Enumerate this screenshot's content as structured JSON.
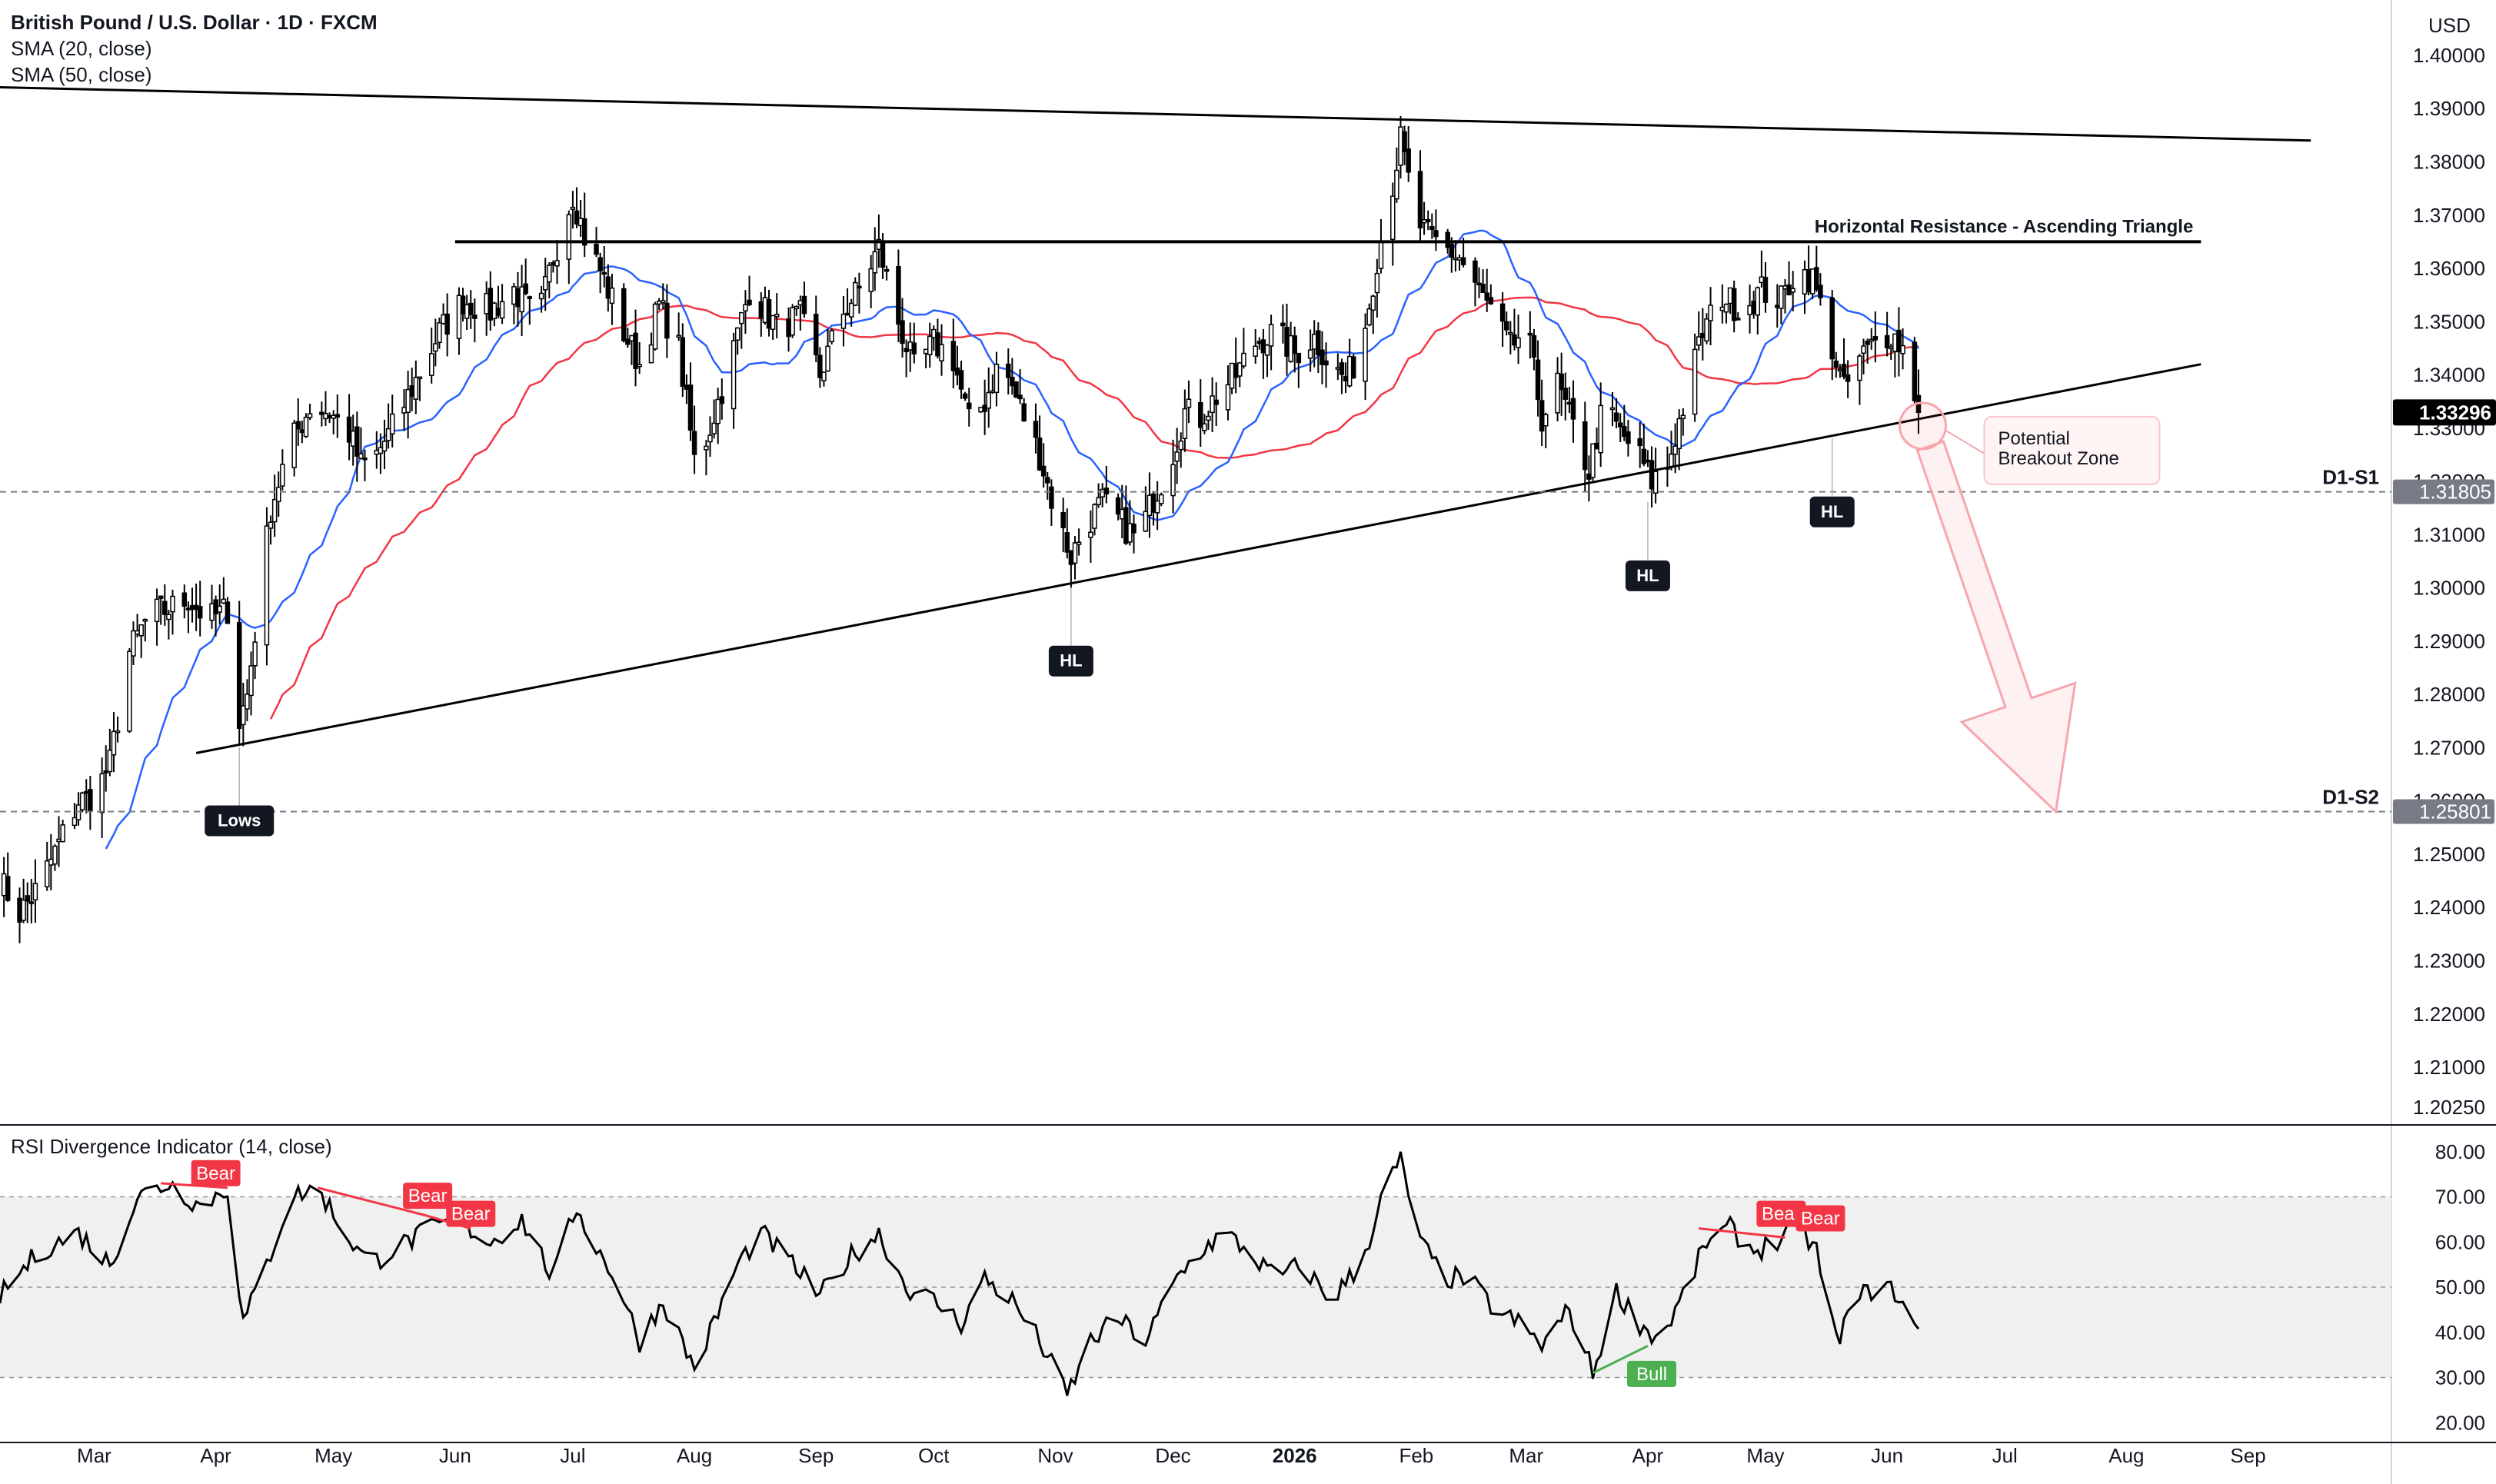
{
  "header": {
    "title": "British Pound / U.S. Dollar · 1D · FXCM",
    "indicators": [
      "SMA (20, close)",
      "SMA (50, close)"
    ]
  },
  "colors": {
    "sma20": "#2962ff",
    "sma50": "#f23645",
    "candle": "#000000",
    "bear_label": "#f23645",
    "bull_label": "#4caf50",
    "breakout_arrow": "#f7a6ad",
    "rsi_band": "#f0f0f0"
  },
  "chart_data": [
    {
      "type": "candlestick",
      "currency_label": "USD",
      "ylim": [
        1.2025,
        1.4075
      ],
      "y_ticks": [
        "1.40000",
        "1.39000",
        "1.38000",
        "1.37000",
        "1.36000",
        "1.35000",
        "1.34000",
        "1.33000",
        "1.32000",
        "1.31000",
        "1.30000",
        "1.29000",
        "1.28000",
        "1.27000",
        "1.26000",
        "1.25000",
        "1.24000",
        "1.23000",
        "1.22000",
        "1.21000",
        "1.20250"
      ],
      "x_labels": [
        {
          "label": "Mar",
          "date": "2025-03-01"
        },
        {
          "label": "Apr",
          "date": "2025-04-01"
        },
        {
          "label": "May",
          "date": "2025-05-01"
        },
        {
          "label": "Jun",
          "date": "2025-06-01"
        },
        {
          "label": "Jul",
          "date": "2025-07-01"
        },
        {
          "label": "Aug",
          "date": "2025-08-01"
        },
        {
          "label": "Sep",
          "date": "2025-09-01"
        },
        {
          "label": "Oct",
          "date": "2025-10-01"
        },
        {
          "label": "Nov",
          "date": "2025-11-01"
        },
        {
          "label": "Dec",
          "date": "2025-12-01"
        },
        {
          "label": "2026",
          "date": "2026-01-01",
          "bold": true
        },
        {
          "label": "Feb",
          "date": "2026-02-01"
        },
        {
          "label": "Mar",
          "date": "2026-03-01"
        },
        {
          "label": "Apr",
          "date": "2026-04-01"
        },
        {
          "label": "May",
          "date": "2026-05-01"
        },
        {
          "label": "Jun",
          "date": "2026-06-01"
        },
        {
          "label": "Jul",
          "date": "2026-07-01"
        },
        {
          "label": "Aug",
          "date": "2026-08-01"
        },
        {
          "label": "Sep",
          "date": "2026-09-01"
        }
      ],
      "x_range": [
        "2025-02-05",
        "2026-09-25"
      ],
      "last_date": "2026-06-09",
      "close_anchors": [
        [
          "2025-02-05",
          1.245
        ],
        [
          "2025-02-10",
          1.239
        ],
        [
          "2025-02-15",
          1.244
        ],
        [
          "2025-02-20",
          1.252
        ],
        [
          "2025-02-25",
          1.26
        ],
        [
          "2025-03-01",
          1.261
        ],
        [
          "2025-03-05",
          1.267
        ],
        [
          "2025-03-10",
          1.288
        ],
        [
          "2025-03-15",
          1.295
        ],
        [
          "2025-03-20",
          1.296
        ],
        [
          "2025-03-25",
          1.298
        ],
        [
          "2025-03-30",
          1.294
        ],
        [
          "2025-04-04",
          1.296
        ],
        [
          "2025-04-07",
          1.275
        ],
        [
          "2025-04-09",
          1.28
        ],
        [
          "2025-04-15",
          1.315
        ],
        [
          "2025-04-20",
          1.327
        ],
        [
          "2025-04-25",
          1.334
        ],
        [
          "2025-04-30",
          1.333
        ],
        [
          "2025-05-05",
          1.329
        ],
        [
          "2025-05-08",
          1.323
        ],
        [
          "2025-05-12",
          1.325
        ],
        [
          "2025-05-16",
          1.33
        ],
        [
          "2025-05-22",
          1.339
        ],
        [
          "2025-05-28",
          1.348
        ],
        [
          "2025-06-03",
          1.354
        ],
        [
          "2025-06-10",
          1.352
        ],
        [
          "2025-06-16",
          1.356
        ],
        [
          "2025-06-22",
          1.35
        ],
        [
          "2025-06-26",
          1.362
        ],
        [
          "2025-07-01",
          1.374
        ],
        [
          "2025-07-04",
          1.366
        ],
        [
          "2025-07-09",
          1.358
        ],
        [
          "2025-07-14",
          1.348
        ],
        [
          "2025-07-18",
          1.342
        ],
        [
          "2025-07-23",
          1.353
        ],
        [
          "2025-07-28",
          1.345
        ],
        [
          "2025-08-01",
          1.324
        ],
        [
          "2025-08-04",
          1.328
        ],
        [
          "2025-08-10",
          1.342
        ],
        [
          "2025-08-15",
          1.356
        ],
        [
          "2025-08-22",
          1.349
        ],
        [
          "2025-08-28",
          1.351
        ],
        [
          "2025-09-02",
          1.34
        ],
        [
          "2025-09-08",
          1.352
        ],
        [
          "2025-09-12",
          1.356
        ],
        [
          "2025-09-17",
          1.364
        ],
        [
          "2025-09-22",
          1.35
        ],
        [
          "2025-09-26",
          1.341
        ],
        [
          "2025-10-01",
          1.346
        ],
        [
          "2025-10-06",
          1.343
        ],
        [
          "2025-10-10",
          1.331
        ],
        [
          "2025-10-14",
          1.335
        ],
        [
          "2025-10-18",
          1.343
        ],
        [
          "2025-10-23",
          1.334
        ],
        [
          "2025-10-28",
          1.325
        ],
        [
          "2025-11-01",
          1.314
        ],
        [
          "2025-11-05",
          1.306
        ],
        [
          "2025-11-09",
          1.312
        ],
        [
          "2025-11-13",
          1.316
        ],
        [
          "2025-11-18",
          1.312
        ],
        [
          "2025-11-22",
          1.309
        ],
        [
          "2025-11-26",
          1.317
        ],
        [
          "2025-11-30",
          1.323
        ],
        [
          "2025-12-04",
          1.333
        ],
        [
          "2025-12-08",
          1.332
        ],
        [
          "2025-12-12",
          1.336
        ],
        [
          "2025-12-17",
          1.34
        ],
        [
          "2025-12-22",
          1.346
        ],
        [
          "2025-12-27",
          1.348
        ],
        [
          "2026-01-01",
          1.344
        ],
        [
          "2026-01-06",
          1.347
        ],
        [
          "2026-01-10",
          1.342
        ],
        [
          "2026-01-14",
          1.339
        ],
        [
          "2026-01-18",
          1.345
        ],
        [
          "2026-01-22",
          1.362
        ],
        [
          "2026-01-26",
          1.376
        ],
        [
          "2026-01-28",
          1.384
        ],
        [
          "2026-02-01",
          1.369
        ],
        [
          "2026-02-04",
          1.366
        ],
        [
          "2026-02-08",
          1.364
        ],
        [
          "2026-02-12",
          1.362
        ],
        [
          "2026-02-16",
          1.357
        ],
        [
          "2026-02-20",
          1.352
        ],
        [
          "2026-02-25",
          1.345
        ],
        [
          "2026-03-01",
          1.349
        ],
        [
          "2026-03-05",
          1.332
        ],
        [
          "2026-03-09",
          1.338
        ],
        [
          "2026-03-13",
          1.33
        ],
        [
          "2026-03-17",
          1.322
        ],
        [
          "2026-03-21",
          1.335
        ],
        [
          "2026-03-25",
          1.329
        ],
        [
          "2026-03-29",
          1.326
        ],
        [
          "2026-04-02",
          1.32
        ],
        [
          "2026-04-06",
          1.323
        ],
        [
          "2026-04-10",
          1.334
        ],
        [
          "2026-04-15",
          1.348
        ],
        [
          "2026-04-20",
          1.355
        ],
        [
          "2026-04-25",
          1.352
        ],
        [
          "2026-04-30",
          1.356
        ],
        [
          "2026-05-05",
          1.354
        ],
        [
          "2026-05-09",
          1.36
        ],
        [
          "2026-05-13",
          1.358
        ],
        [
          "2026-05-17",
          1.348
        ],
        [
          "2026-05-21",
          1.337
        ],
        [
          "2026-05-25",
          1.343
        ],
        [
          "2026-05-29",
          1.346
        ],
        [
          "2026-06-02",
          1.348
        ],
        [
          "2026-06-06",
          1.344
        ],
        [
          "2026-06-09",
          1.333
        ]
      ],
      "annotations": {
        "resistance_label": "Horizontal Resistance - Ascending Triangle",
        "breakout_label_lines": [
          "Potential",
          "Breakout Zone"
        ],
        "support_levels": [
          {
            "name": "D1-S1",
            "price": 1.31805,
            "label": "1.31805"
          },
          {
            "name": "D1-S2",
            "price": 1.25801,
            "label": "1.25801"
          }
        ],
        "last_price_label": "1.33296",
        "last_price": 1.33296,
        "swing_points": [
          {
            "label": "Lows",
            "date": "2025-04-07",
            "price": 1.271
          },
          {
            "label": "HL",
            "date": "2025-11-05",
            "price": 1.301
          },
          {
            "label": "HL",
            "date": "2026-04-01",
            "price": 1.317
          },
          {
            "label": "HL",
            "date": "2026-05-18",
            "price": 1.329
          }
        ],
        "resistance_level": 1.365,
        "resistance_span": [
          "2025-06-01",
          "2026-08-20"
        ],
        "upper_trendline": [
          [
            "2025-02-05",
            1.394
          ],
          [
            "2026-09-17",
            1.384
          ]
        ],
        "lower_trendline": [
          [
            "2025-03-27",
            1.269
          ],
          [
            "2026-08-20",
            1.342
          ]
        ],
        "breakout_arrow": {
          "from": [
            "2026-06-14",
            1.331
          ],
          "to": [
            "2026-07-14",
            1.258
          ]
        }
      }
    },
    {
      "type": "line",
      "name": "RSI Divergence Indicator (14, close)",
      "ylim": [
        18,
        82
      ],
      "y_ticks": [
        "80.00",
        "70.00",
        "60.00",
        "50.00",
        "40.00",
        "30.00",
        "20.00"
      ],
      "band": [
        30,
        70
      ],
      "mid": 50,
      "rsi_anchors": [
        [
          "2025-02-05",
          48
        ],
        [
          "2025-02-15",
          58
        ],
        [
          "2025-02-25",
          62
        ],
        [
          "2025-03-05",
          55
        ],
        [
          "2025-03-12",
          70
        ],
        [
          "2025-03-20",
          73
        ],
        [
          "2025-03-28",
          68
        ],
        [
          "2025-04-04",
          72
        ],
        [
          "2025-04-08",
          42
        ],
        [
          "2025-04-14",
          55
        ],
        [
          "2025-04-20",
          70
        ],
        [
          "2025-04-27",
          72
        ],
        [
          "2025-05-04",
          62
        ],
        [
          "2025-05-10",
          55
        ],
        [
          "2025-05-16",
          58
        ],
        [
          "2025-05-24",
          62
        ],
        [
          "2025-06-01",
          65
        ],
        [
          "2025-06-10",
          60
        ],
        [
          "2025-06-18",
          65
        ],
        [
          "2025-06-26",
          52
        ],
        [
          "2025-07-02",
          68
        ],
        [
          "2025-07-06",
          60
        ],
        [
          "2025-07-12",
          52
        ],
        [
          "2025-07-18",
          38
        ],
        [
          "2025-07-24",
          47
        ],
        [
          "2025-08-01",
          32
        ],
        [
          "2025-08-06",
          42
        ],
        [
          "2025-08-12",
          55
        ],
        [
          "2025-08-18",
          62
        ],
        [
          "2025-08-26",
          55
        ],
        [
          "2025-09-02",
          48
        ],
        [
          "2025-09-10",
          57
        ],
        [
          "2025-09-17",
          62
        ],
        [
          "2025-09-24",
          50
        ],
        [
          "2025-10-01",
          47
        ],
        [
          "2025-10-08",
          42
        ],
        [
          "2025-10-14",
          52
        ],
        [
          "2025-10-21",
          47
        ],
        [
          "2025-10-28",
          38
        ],
        [
          "2025-11-04",
          26
        ],
        [
          "2025-11-10",
          38
        ],
        [
          "2025-11-17",
          43
        ],
        [
          "2025-11-24",
          38
        ],
        [
          "2025-12-02",
          52
        ],
        [
          "2025-12-08",
          58
        ],
        [
          "2025-12-14",
          62
        ],
        [
          "2025-12-20",
          58
        ],
        [
          "2025-12-27",
          52
        ],
        [
          "2026-01-03",
          55
        ],
        [
          "2026-01-10",
          47
        ],
        [
          "2026-01-18",
          55
        ],
        [
          "2026-01-24",
          72
        ],
        [
          "2026-01-28",
          78
        ],
        [
          "2026-02-02",
          60
        ],
        [
          "2026-02-08",
          52
        ],
        [
          "2026-02-14",
          52
        ],
        [
          "2026-02-21",
          45
        ],
        [
          "2026-02-27",
          42
        ],
        [
          "2026-03-05",
          37
        ],
        [
          "2026-03-12",
          45
        ],
        [
          "2026-03-18",
          31
        ],
        [
          "2026-03-24",
          49
        ],
        [
          "2026-03-30",
          42
        ],
        [
          "2026-04-04",
          38
        ],
        [
          "2026-04-10",
          48
        ],
        [
          "2026-04-16",
          60
        ],
        [
          "2026-04-22",
          63
        ],
        [
          "2026-04-28",
          58
        ],
        [
          "2026-05-04",
          60
        ],
        [
          "2026-05-09",
          64
        ],
        [
          "2026-05-14",
          58
        ],
        [
          "2026-05-19",
          38
        ],
        [
          "2026-05-24",
          47
        ],
        [
          "2026-05-29",
          50
        ],
        [
          "2026-06-03",
          49
        ],
        [
          "2026-06-09",
          40
        ]
      ],
      "divergence_labels": [
        {
          "text": "Bear",
          "kind": "bear",
          "date": "2025-04-01",
          "value": 72
        },
        {
          "text": "Bear",
          "kind": "bear",
          "date": "2025-05-25",
          "value": 67
        },
        {
          "text": "Bear",
          "kind": "bear",
          "date": "2025-06-05",
          "value": 63
        },
        {
          "text": "Bear",
          "kind": "bear",
          "date": "2026-05-05",
          "value": 63
        },
        {
          "text": "Bear",
          "kind": "bear",
          "date": "2026-05-15",
          "value": 62
        },
        {
          "text": "Bull",
          "kind": "bull",
          "date": "2026-04-02",
          "value": 33
        }
      ],
      "divergence_lines": [
        {
          "kind": "bear",
          "from": [
            "2025-03-18",
            73
          ],
          "to": [
            "2025-04-04",
            72
          ]
        },
        {
          "kind": "bear",
          "from": [
            "2025-04-27",
            72
          ],
          "to": [
            "2025-05-24",
            66
          ]
        },
        {
          "kind": "bear",
          "from": [
            "2025-05-24",
            66
          ],
          "to": [
            "2025-06-05",
            63
          ]
        },
        {
          "kind": "bear",
          "from": [
            "2026-04-14",
            63
          ],
          "to": [
            "2026-05-06",
            61
          ]
        },
        {
          "kind": "bull",
          "from": [
            "2026-03-18",
            31
          ],
          "to": [
            "2026-04-01",
            37
          ]
        }
      ]
    }
  ]
}
